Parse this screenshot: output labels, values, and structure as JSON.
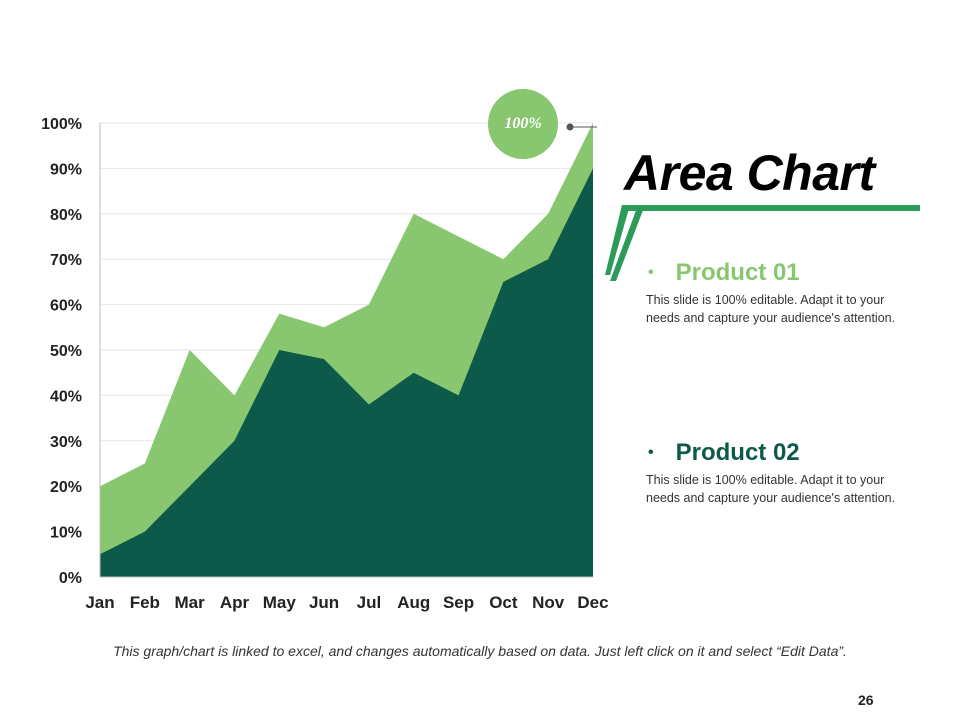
{
  "slide": {
    "title": "Area Chart",
    "footnote": "This graph/chart is linked to excel, and changes automatically based on data. Just left click on it and select “Edit Data”.",
    "page_number": "26",
    "callout": "100%",
    "bullet": "•",
    "colors": {
      "product01": "#88c76f",
      "product02": "#0d5a4a",
      "accent": "#2e9a5a"
    }
  },
  "products": [
    {
      "label": "Product 01",
      "description": "This slide is 100% editable. Adapt it to your needs and capture your audience's attention."
    },
    {
      "label": "Product 02",
      "description": "This slide is 100% editable. Adapt it to your needs and capture your audience's attention."
    }
  ],
  "chart_data": {
    "type": "area",
    "categories": [
      "Jan",
      "Feb",
      "Mar",
      "Apr",
      "May",
      "Jun",
      "Jul",
      "Aug",
      "Sep",
      "Oct",
      "Nov",
      "Dec"
    ],
    "series": [
      {
        "name": "Product 01",
        "values": [
          20,
          25,
          50,
          40,
          58,
          55,
          60,
          80,
          75,
          70,
          80,
          100
        ]
      },
      {
        "name": "Product 02",
        "values": [
          5,
          10,
          20,
          30,
          50,
          48,
          38,
          45,
          40,
          65,
          70,
          90
        ]
      }
    ],
    "ylim": [
      0,
      100
    ],
    "yticks": [
      "0%",
      "10%",
      "20%",
      "30%",
      "40%",
      "50%",
      "60%",
      "70%",
      "80%",
      "90%",
      "100%"
    ],
    "grid": true
  }
}
